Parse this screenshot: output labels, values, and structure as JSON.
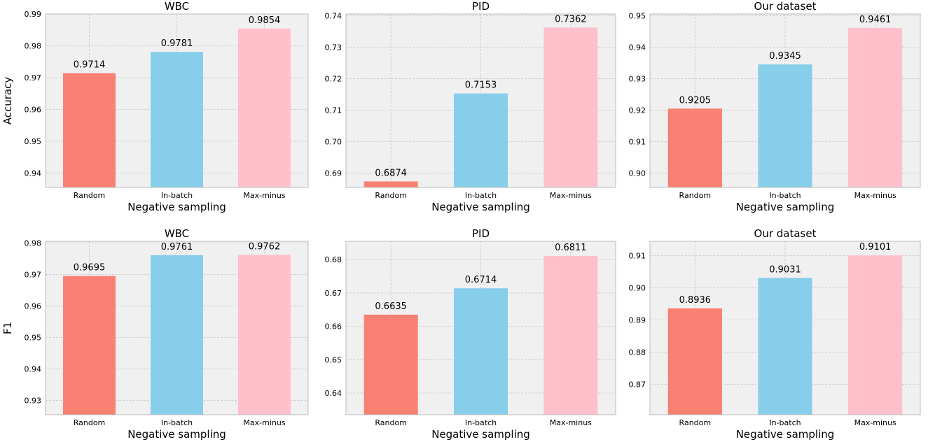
{
  "chart_data": [
    {
      "type": "bar",
      "title": "WBC",
      "xlabel": "Negative sampling",
      "ylabel": "Accuracy",
      "categories": [
        "Random",
        "In-batch",
        "Max-minus"
      ],
      "values": [
        0.9714,
        0.9781,
        0.9854
      ],
      "value_labels": [
        "0.9714",
        "0.9781",
        "0.9854"
      ],
      "ylim": [
        0.9355,
        0.99
      ],
      "yticks": [
        0.94,
        0.95,
        0.96,
        0.97,
        0.98,
        0.99
      ],
      "ytick_labels": [
        "0.94",
        "0.95",
        "0.96",
        "0.97",
        "0.98",
        "0.99"
      ],
      "grid": true
    },
    {
      "type": "bar",
      "title": "PID",
      "xlabel": "Negative sampling",
      "ylabel": "",
      "categories": [
        "Random",
        "In-batch",
        "Max-minus"
      ],
      "values": [
        0.6874,
        0.7153,
        0.7362
      ],
      "value_labels": [
        "0.6874",
        "0.7153",
        "0.7362"
      ],
      "ylim": [
        0.6855,
        0.7405
      ],
      "yticks": [
        0.69,
        0.7,
        0.71,
        0.72,
        0.73,
        0.74
      ],
      "ytick_labels": [
        "0.69",
        "0.70",
        "0.71",
        "0.72",
        "0.73",
        "0.74"
      ],
      "grid": true
    },
    {
      "type": "bar",
      "title": "Our dataset",
      "xlabel": "Negative sampling",
      "ylabel": "",
      "categories": [
        "Random",
        "In-batch",
        "Max-minus"
      ],
      "values": [
        0.9205,
        0.9345,
        0.9461
      ],
      "value_labels": [
        "0.9205",
        "0.9345",
        "0.9461"
      ],
      "ylim": [
        0.8955,
        0.9505
      ],
      "yticks": [
        0.9,
        0.91,
        0.92,
        0.93,
        0.94,
        0.95
      ],
      "ytick_labels": [
        "0.90",
        "0.91",
        "0.92",
        "0.93",
        "0.94",
        "0.95"
      ],
      "grid": true
    },
    {
      "type": "bar",
      "title": "WBC",
      "xlabel": "Negative sampling",
      "ylabel": "F1",
      "categories": [
        "Random",
        "In-batch",
        "Max-minus"
      ],
      "values": [
        0.9695,
        0.9761,
        0.9762
      ],
      "value_labels": [
        "0.9695",
        "0.9761",
        "0.9762"
      ],
      "ylim": [
        0.9255,
        0.9805
      ],
      "yticks": [
        0.93,
        0.94,
        0.95,
        0.96,
        0.97,
        0.98
      ],
      "ytick_labels": [
        "0.93",
        "0.94",
        "0.95",
        "0.96",
        "0.97",
        "0.98"
      ],
      "grid": true
    },
    {
      "type": "bar",
      "title": "PID",
      "xlabel": "Negative sampling",
      "ylabel": "",
      "categories": [
        "Random",
        "In-batch",
        "Max-minus"
      ],
      "values": [
        0.6635,
        0.6714,
        0.6811
      ],
      "value_labels": [
        "0.6635",
        "0.6714",
        "0.6811"
      ],
      "ylim": [
        0.6335,
        0.6855
      ],
      "yticks": [
        0.64,
        0.65,
        0.66,
        0.67,
        0.68
      ],
      "ytick_labels": [
        "0.64",
        "0.65",
        "0.66",
        "0.67",
        "0.68"
      ],
      "grid": true
    },
    {
      "type": "bar",
      "title": "Our dataset",
      "xlabel": "Negative sampling",
      "ylabel": "",
      "categories": [
        "Random",
        "In-batch",
        "Max-minus"
      ],
      "values": [
        0.8936,
        0.9031,
        0.9101
      ],
      "value_labels": [
        "0.8936",
        "0.9031",
        "0.9101"
      ],
      "ylim": [
        0.8605,
        0.9145
      ],
      "yticks": [
        0.87,
        0.88,
        0.89,
        0.9,
        0.91
      ],
      "ytick_labels": [
        "0.87",
        "0.88",
        "0.89",
        "0.90",
        "0.91"
      ],
      "grid": true
    }
  ],
  "colors": {
    "bars": [
      "#f98072",
      "#87ceeb",
      "#ffc0cb"
    ],
    "plot_background": "#f0f0f0",
    "grid": "#c8c8c8",
    "axes_edge": "#bdbdbd"
  }
}
